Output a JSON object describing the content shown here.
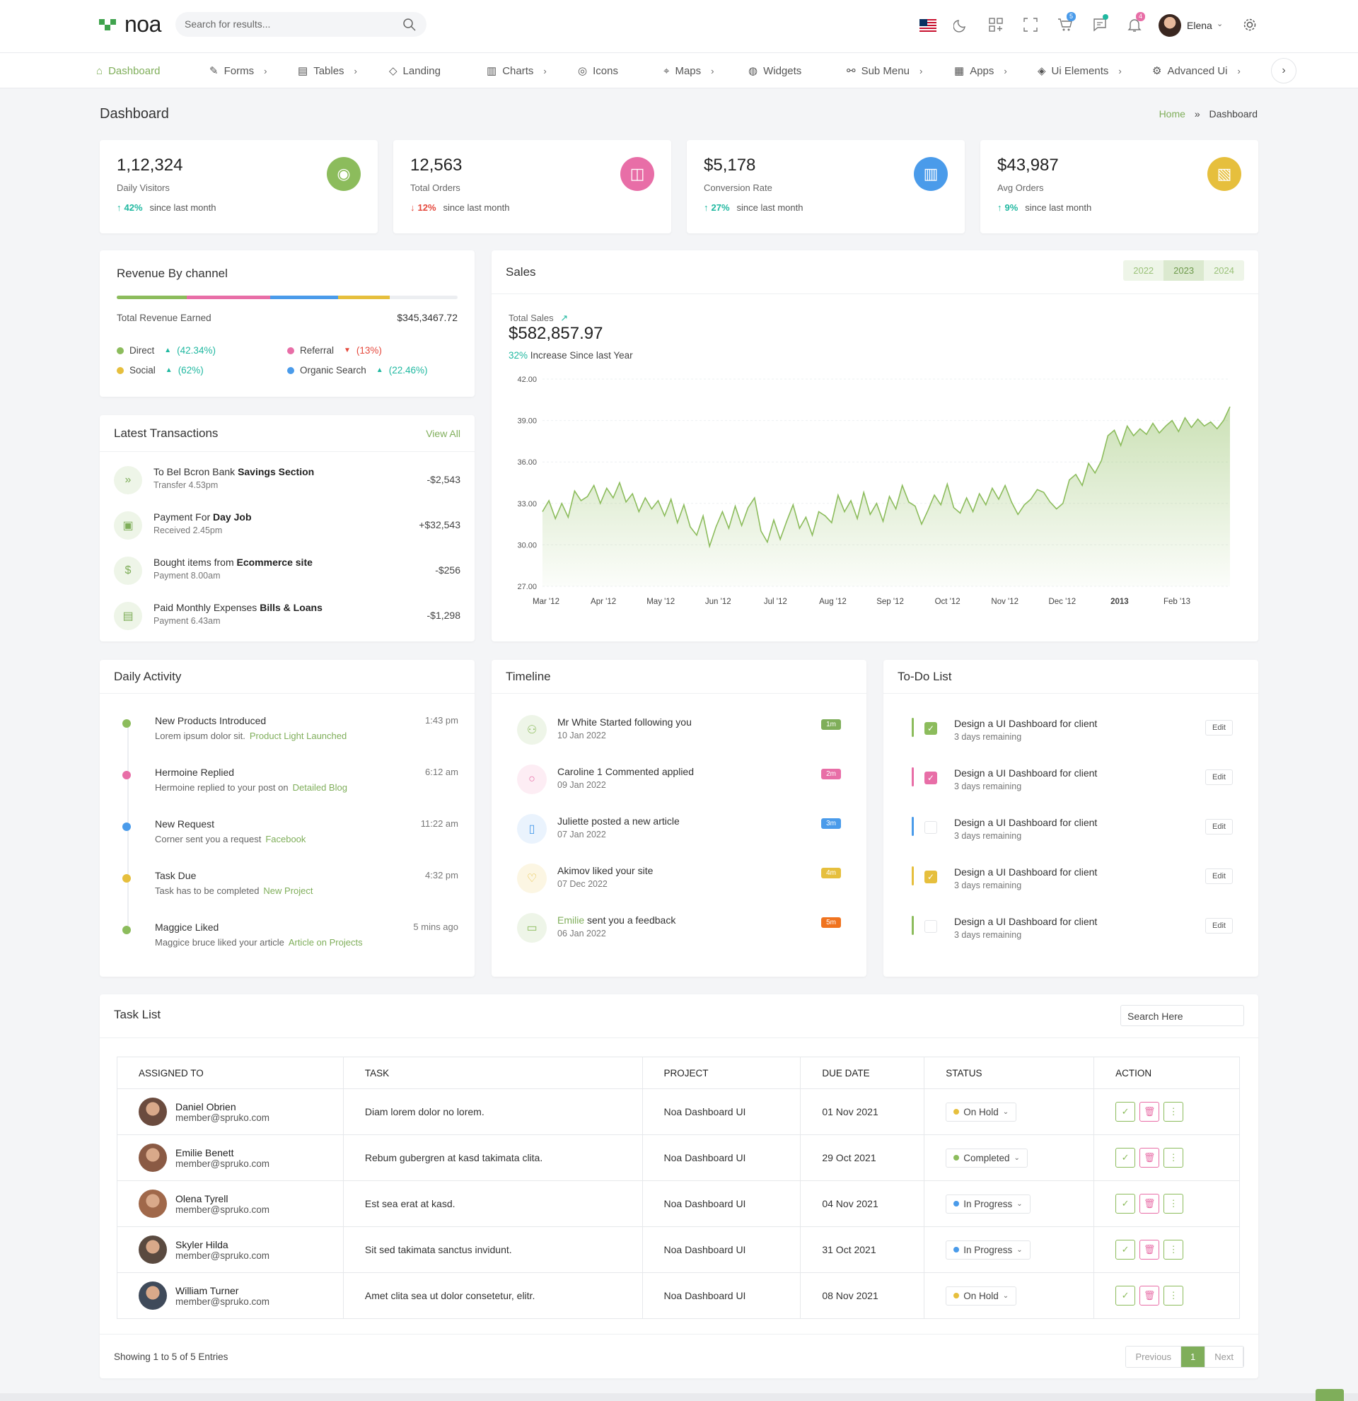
{
  "header": {
    "logo_text": "noa",
    "search_placeholder": "Search for results...",
    "cart_badge": "5",
    "notification_badge": "4",
    "user_name": "Elena",
    "accent": "#7fae5a"
  },
  "nav": [
    {
      "label": "Dashboard",
      "icon": "home-icon",
      "chevron": ""
    },
    {
      "label": "Forms",
      "icon": "edit-icon",
      "chevron": "›"
    },
    {
      "label": "Tables",
      "icon": "table-icon",
      "chevron": "›"
    },
    {
      "label": "Landing",
      "icon": "tag-icon",
      "chevron": ""
    },
    {
      "label": "Charts",
      "icon": "bar-chart-icon",
      "chevron": "›"
    },
    {
      "label": "Icons",
      "icon": "aperture-icon",
      "chevron": ""
    },
    {
      "label": "Maps",
      "icon": "map-pin-icon",
      "chevron": "›"
    },
    {
      "label": "Widgets",
      "icon": "widget-icon",
      "chevron": ""
    },
    {
      "label": "Sub Menu",
      "icon": "share-icon",
      "chevron": "›"
    },
    {
      "label": "Apps",
      "icon": "grid-icon",
      "chevron": "›"
    },
    {
      "label": "Ui Elements",
      "icon": "layers-icon",
      "chevron": "›"
    },
    {
      "label": "Advanced Ui",
      "icon": "settings-icon",
      "chevron": "›"
    }
  ],
  "page": {
    "title": "Dashboard",
    "crumb_home": "Home",
    "crumb_sep": "»",
    "crumb_current": "Dashboard"
  },
  "stats": [
    {
      "value": "1,12,324",
      "label": "Daily Visitors",
      "pct": "42%",
      "dir": "up",
      "note": "since last month",
      "color": "#8cbc5c",
      "icon": "eye-icon"
    },
    {
      "value": "12,563",
      "label": "Total Orders",
      "pct": "12%",
      "dir": "down",
      "note": "since last month",
      "color": "#e86ea7",
      "icon": "shopping-bag-icon"
    },
    {
      "value": "$5,178",
      "label": "Conversion Rate",
      "pct": "27%",
      "dir": "up",
      "note": "since last month",
      "color": "#4a9bea",
      "icon": "bar-chart-icon"
    },
    {
      "value": "$43,987",
      "label": "Avg Orders",
      "pct": "9%",
      "dir": "up",
      "note": "since last month",
      "color": "#e6bf3d",
      "icon": "dollar-file-icon"
    }
  ],
  "revenue": {
    "title": "Revenue By channel",
    "total_label": "Total Revenue Earned",
    "total_value": "$345,3467.72",
    "segments": [
      {
        "color": "#8cbc5c",
        "share": 0.205
      },
      {
        "color": "#e86ea7",
        "share": 0.245
      },
      {
        "color": "#4a9bea",
        "share": 0.2
      },
      {
        "color": "#e6bf3d",
        "share": 0.15
      }
    ],
    "channels": [
      {
        "name": "Direct",
        "value": "(42.34%)",
        "dir": "up",
        "color": "#8cbc5c"
      },
      {
        "name": "Referral",
        "value": "(13%)",
        "dir": "down",
        "color": "#e86ea7"
      },
      {
        "name": "Social",
        "value": "(62%)",
        "dir": "up",
        "color": "#e6bf3d"
      },
      {
        "name": "Organic Search",
        "value": "(22.46%)",
        "dir": "up",
        "color": "#4a9bea"
      }
    ]
  },
  "transactions": {
    "title": "Latest Transactions",
    "view_all": "View All",
    "items": [
      {
        "text": "To Bel Bcron Bank",
        "bold": "Savings Section",
        "sub": "Transfer 4.53pm",
        "amount": "-$2,543",
        "icon": "chevrons-right-icon",
        "glyph": "»"
      },
      {
        "text": "Payment For",
        "bold": "Day Job",
        "sub": "Received 2.45pm",
        "amount": "+$32,543",
        "icon": "briefcase-icon",
        "glyph": "▣"
      },
      {
        "text": "Bought items from",
        "bold": "Ecommerce site",
        "sub": "Payment 8.00am",
        "amount": "-$256",
        "icon": "dollar-icon",
        "glyph": "$"
      },
      {
        "text": "Paid Monthly Expenses",
        "bold": "Bills & Loans",
        "sub": "Payment 6.43am",
        "amount": "-$1,298",
        "icon": "file-icon",
        "glyph": "▤"
      }
    ]
  },
  "sales": {
    "title": "Sales",
    "years": [
      "2022",
      "2023",
      "2024"
    ],
    "active_year": "2023",
    "total_label": "Total Sales",
    "total_value": "$582,857.97",
    "increase_pct": "32%",
    "increase_text": "Increase Since last Year"
  },
  "chart_data": {
    "type": "area",
    "title": "",
    "xlabel": "",
    "ylabel": "",
    "ylim": [
      27,
      42
    ],
    "yticks": [
      "42.00",
      "39.00",
      "36.00",
      "33.00",
      "30.00",
      "27.00"
    ],
    "xticks": [
      "Mar '12",
      "Apr '12",
      "May '12",
      "Jun '12",
      "Jul '12",
      "Aug '12",
      "Sep '12",
      "Oct '12",
      "Nov '12",
      "Dec '12",
      "2013",
      "Feb '13"
    ],
    "series": [
      {
        "color": "#8cbc5c",
        "values": [
          32.4,
          33.2,
          31.9,
          33.0,
          32.0,
          33.9,
          33.2,
          33.5,
          34.3,
          33.0,
          34.1,
          33.4,
          34.5,
          33.1,
          33.7,
          32.4,
          33.4,
          32.6,
          33.2,
          32.1,
          33.3,
          31.6,
          32.9,
          31.3,
          30.7,
          32.1,
          29.9,
          31.3,
          32.4,
          31.2,
          32.8,
          31.4,
          32.7,
          33.4,
          31.0,
          30.2,
          31.8,
          30.4,
          31.7,
          32.9,
          31.2,
          32.0,
          30.7,
          32.4,
          32.1,
          31.6,
          33.6,
          32.4,
          33.2,
          31.9,
          33.8,
          32.2,
          33.0,
          31.7,
          33.5,
          32.6,
          34.3,
          33.1,
          32.8,
          31.5,
          32.5,
          33.6,
          32.9,
          34.4,
          32.7,
          32.3,
          33.4,
          32.4,
          33.7,
          32.9,
          34.1,
          33.3,
          34.3,
          33.1,
          32.2,
          32.9,
          33.3,
          34.0,
          33.8,
          33.1,
          32.6,
          33.0,
          34.7,
          35.1,
          34.3,
          35.9,
          35.2,
          36.1,
          37.9,
          38.3,
          37.2,
          38.6,
          37.9,
          38.4,
          38.0,
          38.8,
          38.1,
          38.6,
          39.0,
          38.2,
          39.2,
          38.5,
          39.1,
          38.6,
          38.9,
          38.4,
          39.0,
          40.0
        ]
      }
    ]
  },
  "activity": {
    "title": "Daily Activity",
    "items": [
      {
        "title": "New Products Introduced",
        "text": "Lorem ipsum dolor sit.",
        "link": "Product Light Launched",
        "time": "1:43 pm",
        "color": "#8cbc5c"
      },
      {
        "title": "Hermoine Replied",
        "text": "Hermoine replied to your post on",
        "link": "Detailed Blog",
        "time": "6:12 am",
        "color": "#e86ea7"
      },
      {
        "title": "New Request",
        "text": "Corner sent you a request",
        "link": "Facebook",
        "time": "11:22 am",
        "color": "#4a9bea"
      },
      {
        "title": "Task Due",
        "text": "Task has to be completed",
        "link": "New Project",
        "time": "4:32 pm",
        "color": "#e6bf3d"
      },
      {
        "title": "Maggice Liked",
        "text": "Maggice bruce liked your article",
        "link": "Article on Projects",
        "time": "5 mins ago",
        "color": "#8cbc5c"
      }
    ]
  },
  "timeline": {
    "title": "Timeline",
    "items": [
      {
        "pre": "",
        "text": "Mr White Started following you",
        "date": "10 Jan 2022",
        "tag": "1m",
        "tag_color": "#7fae5a",
        "color": "#8cbc5c",
        "bg": "#eef5e8",
        "icon": "user-plus-icon",
        "glyph": "⚇"
      },
      {
        "pre": "",
        "text": "Caroline 1 Commented applied",
        "date": "09 Jan 2022",
        "tag": "2m",
        "tag_color": "#e86ea7",
        "color": "#e86ea7",
        "bg": "#fdedf4",
        "icon": "message-icon",
        "glyph": "○"
      },
      {
        "pre": "",
        "text": "Juliette posted a new article",
        "date": "07 Jan 2022",
        "tag": "3m",
        "tag_color": "#4a9bea",
        "color": "#4a9bea",
        "bg": "#eaf3fd",
        "icon": "clipboard-icon",
        "glyph": "▯"
      },
      {
        "pre": "",
        "text": "Akimov liked your site",
        "date": "07 Dec 2022",
        "tag": "4m",
        "tag_color": "#e6bf3d",
        "color": "#e6bf3d",
        "bg": "#fcf6e3",
        "icon": "thumbs-up-icon",
        "glyph": "♡"
      },
      {
        "pre": "Emilie",
        "text": " sent you a feedback",
        "date": "06 Jan 2022",
        "tag": "5m",
        "tag_color": "#f0731f",
        "color": "#8cbc5c",
        "bg": "#eef5e8",
        "icon": "book-icon",
        "glyph": "▭"
      }
    ]
  },
  "todo": {
    "title": "To-Do List",
    "edit_label": "Edit",
    "items": [
      {
        "title": "Design a UI Dashboard for client",
        "sub": "3 days remaining",
        "color": "#8cbc5c",
        "checked": true
      },
      {
        "title": "Design a UI Dashboard for client",
        "sub": "3 days remaining",
        "color": "#e86ea7",
        "checked": true
      },
      {
        "title": "Design a UI Dashboard for client",
        "sub": "3 days remaining",
        "color": "#4a9bea",
        "checked": false
      },
      {
        "title": "Design a UI Dashboard for client",
        "sub": "3 days remaining",
        "color": "#e6bf3d",
        "checked": true
      },
      {
        "title": "Design a UI Dashboard for client",
        "sub": "3 days remaining",
        "color": "#8cbc5c",
        "checked": false
      }
    ]
  },
  "tasks": {
    "title": "Task List",
    "search_placeholder": "Search Here",
    "columns": [
      "ASSIGNED TO",
      "TASK",
      "PROJECT",
      "DUE DATE",
      "STATUS",
      "ACTION"
    ],
    "rows": [
      {
        "name": "Daniel Obrien",
        "email": "member@spruko.com",
        "task": "Diam lorem dolor no lorem.",
        "project": "Noa Dashboard UI",
        "due": "01 Nov 2021",
        "status": "On Hold",
        "status_color": "#e6bf3d",
        "avatar_color": "#6b4b3e"
      },
      {
        "name": "Emilie Benett",
        "email": "member@spruko.com",
        "task": "Rebum gubergren at kasd takimata clita.",
        "project": "Noa Dashboard UI",
        "due": "29 Oct 2021",
        "status": "Completed",
        "status_color": "#8cbc5c",
        "avatar_color": "#8a5a44"
      },
      {
        "name": "Olena Tyrell",
        "email": "member@spruko.com",
        "task": "Est sea erat at kasd.",
        "project": "Noa Dashboard UI",
        "due": "04 Nov 2021",
        "status": "In Progress",
        "status_color": "#4a9bea",
        "avatar_color": "#a0684a"
      },
      {
        "name": "Skyler Hilda",
        "email": "member@spruko.com",
        "task": "Sit sed takimata sanctus invidunt.",
        "project": "Noa Dashboard UI",
        "due": "31 Oct 2021",
        "status": "In Progress",
        "status_color": "#4a9bea",
        "avatar_color": "#5a4a40"
      },
      {
        "name": "William Turner",
        "email": "member@spruko.com",
        "task": "Amet clita sea ut dolor consetetur, elitr.",
        "project": "Noa Dashboard UI",
        "due": "08 Nov 2021",
        "status": "On Hold",
        "status_color": "#e6bf3d",
        "avatar_color": "#3f4a5a"
      }
    ],
    "footer_text": "Showing 1 to 5 of 5 Entries",
    "pagination": [
      "Previous",
      "1",
      "Next"
    ]
  }
}
